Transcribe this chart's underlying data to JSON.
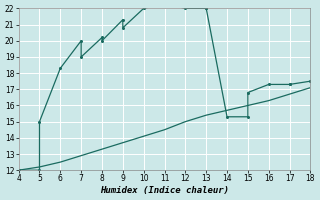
{
  "xlabel": "Humidex (Indice chaleur)",
  "background_color": "#cce8e8",
  "grid_color": "#b0d0d0",
  "line_color": "#1a6b60",
  "xlim": [
    4,
    18
  ],
  "ylim": [
    12,
    22
  ],
  "xticks": [
    4,
    5,
    6,
    7,
    8,
    9,
    10,
    11,
    12,
    13,
    14,
    15,
    16,
    17,
    18
  ],
  "yticks": [
    12,
    13,
    14,
    15,
    16,
    17,
    18,
    19,
    20,
    21,
    22
  ],
  "curve1_x": [
    4,
    5,
    5,
    6,
    7,
    7,
    8,
    8,
    9,
    9,
    10,
    11,
    12,
    13,
    13,
    14,
    15,
    15,
    16,
    17,
    17,
    18
  ],
  "curve1_y": [
    12,
    12,
    15,
    18.3,
    20,
    19,
    20.2,
    20,
    21.3,
    20.8,
    22,
    22.3,
    22,
    22,
    22,
    15.3,
    15.3,
    16.8,
    17.3,
    17.3,
    17.3,
    17.5
  ],
  "curve2_x": [
    4,
    5,
    6,
    7,
    8,
    9,
    10,
    11,
    12,
    13,
    14,
    15,
    16,
    17,
    18
  ],
  "curve2_y": [
    12,
    12.2,
    12.5,
    12.9,
    13.3,
    13.7,
    14.1,
    14.5,
    15.0,
    15.4,
    15.7,
    16.0,
    16.3,
    16.7,
    17.1
  ]
}
